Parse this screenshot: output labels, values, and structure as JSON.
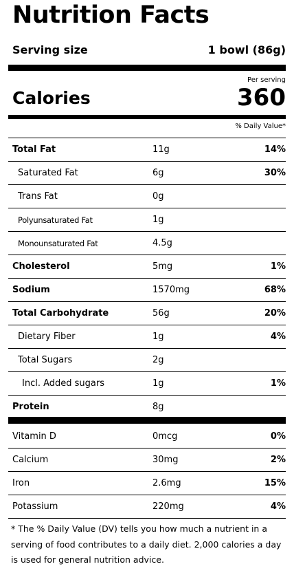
{
  "title": "Nutrition Facts",
  "serving": {
    "label": "Serving size",
    "value": "1 bowl (86g)"
  },
  "per_serving": "Per serving",
  "calories": {
    "label": "Calories",
    "value": "360"
  },
  "daily_value_header": "% Daily Value*",
  "nutrients": [
    {
      "name": "Total Fat",
      "amount": "11g",
      "dv": "14%"
    },
    {
      "name": "Saturated Fat",
      "amount": "6g",
      "dv": "30%"
    },
    {
      "name": "Trans Fat",
      "amount": "0g",
      "dv": ""
    },
    {
      "name": "Polyunsaturated Fat",
      "amount": "1g",
      "dv": ""
    },
    {
      "name": "Monounsaturated Fat",
      "amount": "4.5g",
      "dv": ""
    },
    {
      "name": "Cholesterol",
      "amount": "5mg",
      "dv": "1%"
    },
    {
      "name": "Sodium",
      "amount": "1570mg",
      "dv": "68%"
    },
    {
      "name": "Total Carbohydrate",
      "amount": "56g",
      "dv": "20%"
    },
    {
      "name": "Dietary Fiber",
      "amount": "1g",
      "dv": "4%"
    },
    {
      "name": "Total Sugars",
      "amount": "2g",
      "dv": ""
    },
    {
      "name": "Incl. Added sugars",
      "amount": "1g",
      "dv": "1%"
    },
    {
      "name": "Protein",
      "amount": "8g",
      "dv": ""
    }
  ],
  "vitamins": [
    {
      "name": "Vitamin D",
      "amount": "0mcg",
      "dv": "0%"
    },
    {
      "name": "Calcium",
      "amount": "30mg",
      "dv": "2%"
    },
    {
      "name": "Iron",
      "amount": "2.6mg",
      "dv": "15%"
    },
    {
      "name": "Potassium",
      "amount": "220mg",
      "dv": "4%"
    }
  ],
  "footnote": "* The % Daily Value (DV) tells you how much a nutrient in a serving of food contributes to a daily diet. 2,000 calories a day is used for general nutrition advice."
}
